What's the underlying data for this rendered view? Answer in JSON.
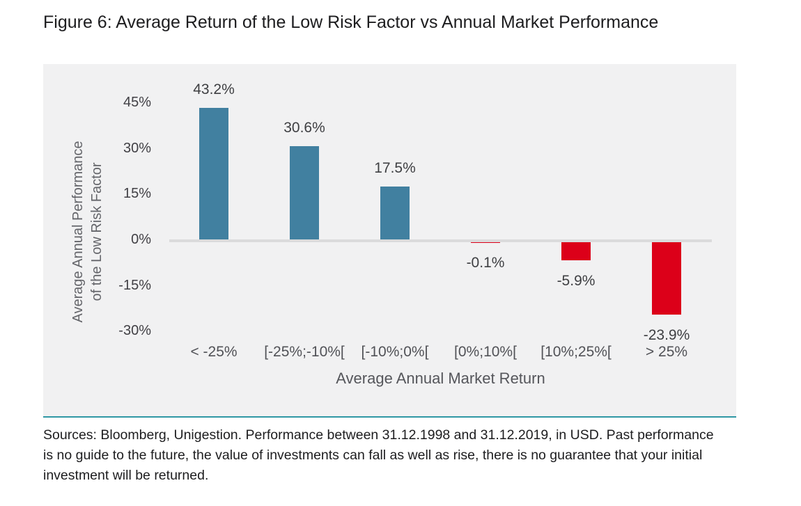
{
  "figure": {
    "title": "Figure 6: Average Return of the Low Risk Factor vs Annual Market Performance"
  },
  "chart_data": {
    "type": "bar",
    "categories": [
      "< -25%",
      "[-25%;-10%[",
      "[-10%;0%[",
      "[0%;10%[",
      "[10%;25%[",
      "> 25%"
    ],
    "values": [
      43.2,
      30.6,
      17.5,
      -0.1,
      -5.9,
      -23.9
    ],
    "value_labels": [
      "43.2%",
      "30.6%",
      "17.5%",
      "-0.1%",
      "-5.9%",
      "-23.9%"
    ],
    "xlabel": "Average Annual Market Return",
    "ylabel_lines": [
      "Average Annual Performance",
      "of the Low Risk Factor"
    ],
    "yticks": [
      {
        "value": 45,
        "label": "45%"
      },
      {
        "value": 30,
        "label": "30%"
      },
      {
        "value": 15,
        "label": "15%"
      },
      {
        "value": 0,
        "label": "0%"
      },
      {
        "value": -15,
        "label": "-15%"
      },
      {
        "value": -30,
        "label": "-30%"
      }
    ],
    "ylim": [
      -35,
      50
    ],
    "grid": false,
    "legend": null,
    "colors": {
      "positive_bar": "#4180A0",
      "negative_bar": "#DC0019",
      "baseline": "#DBDBDC",
      "panel_background": "#F1F1F2",
      "panel_underline": "#2F97A4"
    }
  },
  "footer": {
    "lines": [
      "Sources: Bloomberg, Unigestion. Performance between 31.12.1998 and 31.12.2019, in USD. Past performance",
      "is no guide to the future, the value of investments can fall as well as rise, there is no guarantee that your initial",
      "investment will be returned."
    ]
  }
}
